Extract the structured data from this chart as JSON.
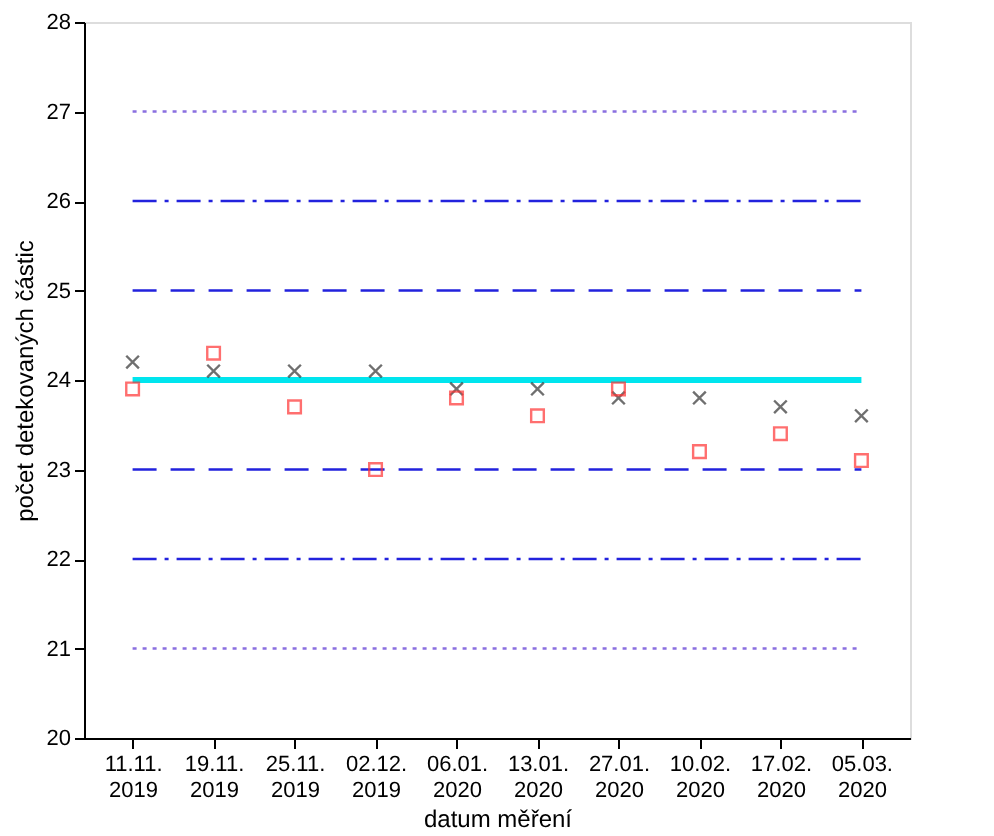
{
  "chart_data": {
    "type": "scatter",
    "xlabel": "datum měření",
    "ylabel": "počet detekovaných částic",
    "categories": [
      "11.11. 2019",
      "19.11. 2019",
      "25.11. 2019",
      "02.12. 2019",
      "06.01. 2020",
      "13.01. 2020",
      "27.01. 2020",
      "10.02. 2020",
      "17.02. 2020",
      "05.03. 2020"
    ],
    "series": [
      {
        "color": "#333333",
        "marker": "cross",
        "values": [
          24.2,
          24.1,
          24.1,
          24.1,
          23.9,
          23.9,
          23.8,
          23.8,
          23.7,
          23.6
        ]
      },
      {
        "color": "#ff3333",
        "marker": "square",
        "values": [
          23.9,
          24.3,
          23.7,
          23.0,
          23.8,
          23.6,
          23.9,
          23.2,
          23.4,
          23.1
        ]
      }
    ],
    "ref_lines": [
      {
        "axis": "y",
        "value": 24,
        "color": "#00e5ee",
        "line_style": "solid"
      },
      {
        "axis": "y",
        "value": 23,
        "color": "#2222dd",
        "line_style": "dashed"
      },
      {
        "axis": "y",
        "value": 25,
        "color": "#2222dd",
        "line_style": "dashed"
      },
      {
        "axis": "y",
        "value": 22,
        "color": "#2222dd",
        "line_style": "dashdot"
      },
      {
        "axis": "y",
        "value": 26,
        "color": "#2222dd",
        "line_style": "dashdot"
      },
      {
        "axis": "y",
        "value": 21,
        "color": "#8a6fe0",
        "line_style": "dotted"
      },
      {
        "axis": "y",
        "value": 27,
        "color": "#8a6fe0",
        "line_style": "dotted"
      }
    ],
    "ylim": [
      20,
      28
    ],
    "yticks": [
      20,
      21,
      22,
      23,
      24,
      25,
      26,
      27,
      28
    ]
  }
}
